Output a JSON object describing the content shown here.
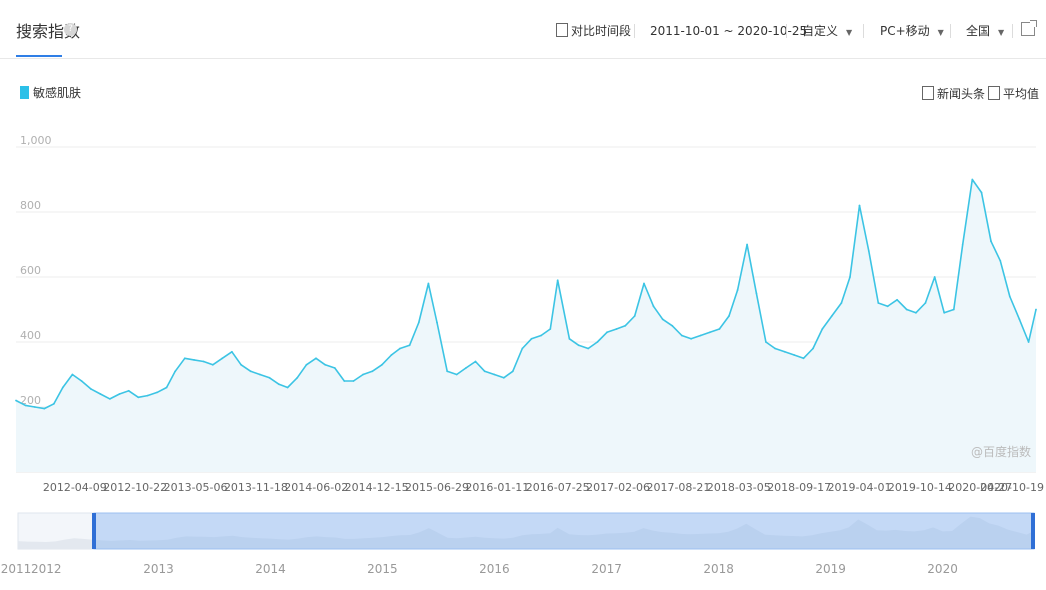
{
  "header": {
    "title": "搜索指数",
    "help_icon": "question-icon",
    "compare_label": "对比时间段",
    "date_range": "2011-10-01 ~ 2020-10-25",
    "custom_label": "自定义",
    "device_label": "PC+移动",
    "region_label": "全国",
    "share_icon": "share-icon"
  },
  "options": {
    "news_label": "新闻头条",
    "avg_label": "平均值"
  },
  "watermark": "@百度指数",
  "colors": {
    "line": "#3cc4e4",
    "accent": "#2f7ee6",
    "fill": "#eef7fb"
  },
  "chart_data": {
    "type": "area",
    "series": [
      {
        "name": "敏感肌肤",
        "x": [
          "2011-10-01",
          "2011-11-01",
          "2011-12-01",
          "2012-01-01",
          "2012-02-01",
          "2012-03-01",
          "2012-04-01",
          "2012-05-01",
          "2012-06-01",
          "2012-07-01",
          "2012-08-01",
          "2012-09-01",
          "2012-10-01",
          "2012-11-01",
          "2012-12-01",
          "2013-01-01",
          "2013-02-01",
          "2013-03-01",
          "2013-04-01",
          "2013-05-01",
          "2013-06-01",
          "2013-07-01",
          "2013-08-01",
          "2013-09-01",
          "2013-10-01",
          "2013-11-01",
          "2013-12-01",
          "2014-01-01",
          "2014-02-01",
          "2014-03-01",
          "2014-04-01",
          "2014-05-01",
          "2014-06-01",
          "2014-07-01",
          "2014-08-01",
          "2014-09-01",
          "2014-10-01",
          "2014-11-01",
          "2014-12-01",
          "2015-01-01",
          "2015-02-01",
          "2015-03-01",
          "2015-04-01",
          "2015-05-01",
          "2015-06-01",
          "2015-06-29",
          "2015-08-01",
          "2015-09-01",
          "2015-10-01",
          "2015-11-01",
          "2015-12-01",
          "2016-01-01",
          "2016-02-01",
          "2016-03-01",
          "2016-04-01",
          "2016-05-01",
          "2016-06-01",
          "2016-07-01",
          "2016-07-25",
          "2016-09-01",
          "2016-10-01",
          "2016-11-01",
          "2016-12-01",
          "2017-01-01",
          "2017-02-01",
          "2017-03-01",
          "2017-04-01",
          "2017-05-01",
          "2017-06-01",
          "2017-07-01",
          "2017-08-01",
          "2017-09-01",
          "2017-10-01",
          "2017-11-01",
          "2017-12-01",
          "2018-01-01",
          "2018-02-01",
          "2018-03-01",
          "2018-04-01",
          "2018-05-01",
          "2018-06-01",
          "2018-07-01",
          "2018-08-01",
          "2018-09-01",
          "2018-10-01",
          "2018-11-01",
          "2018-12-01",
          "2019-01-01",
          "2019-02-01",
          "2019-03-01",
          "2019-04-01",
          "2019-05-01",
          "2019-06-01",
          "2019-07-01",
          "2019-08-01",
          "2019-09-01",
          "2019-10-01",
          "2019-11-01",
          "2019-12-01",
          "2020-01-01",
          "2020-02-01",
          "2020-03-01",
          "2020-04-01",
          "2020-05-01",
          "2020-06-01",
          "2020-07-01",
          "2020-08-01",
          "2020-09-01",
          "2020-10-01",
          "2020-10-25"
        ],
        "values": [
          220,
          205,
          200,
          195,
          210,
          260,
          300,
          280,
          255,
          240,
          225,
          240,
          250,
          230,
          235,
          245,
          260,
          310,
          350,
          345,
          340,
          330,
          350,
          370,
          330,
          310,
          300,
          290,
          270,
          260,
          290,
          330,
          350,
          330,
          320,
          280,
          280,
          300,
          310,
          330,
          360,
          380,
          390,
          460,
          580,
          460,
          310,
          300,
          320,
          340,
          310,
          300,
          290,
          310,
          380,
          410,
          420,
          440,
          590,
          410,
          390,
          380,
          400,
          430,
          440,
          450,
          480,
          580,
          510,
          470,
          450,
          420,
          410,
          420,
          430,
          440,
          480,
          560,
          700,
          550,
          400,
          380,
          370,
          360,
          350,
          380,
          440,
          480,
          520,
          600,
          820,
          680,
          520,
          510,
          530,
          500,
          490,
          520,
          600,
          490,
          500,
          700,
          900,
          860,
          710,
          650,
          540,
          470,
          400,
          500
        ]
      }
    ],
    "yticks": [
      "1,000",
      "800",
      "600",
      "400",
      "200"
    ],
    "ylim": [
      0,
      1000
    ],
    "xlim": [
      "2011-10-01",
      "2020-10-25"
    ],
    "xtick_labels": [
      "2012-04-09",
      "2012-10-22",
      "2013-05-06",
      "2013-11-18",
      "2014-06-02",
      "2014-12-15",
      "2015-06-29",
      "2016-01-11",
      "2016-07-25",
      "2017-02-06",
      "2017-08-21",
      "2018-03-05",
      "2018-09-17",
      "2019-04-01",
      "2019-10-14",
      "2020-04-27",
      "2020-10-19"
    ],
    "navigator_years": [
      "2011",
      "2012",
      "2013",
      "2014",
      "2015",
      "2016",
      "2017",
      "2018",
      "2019",
      "2020"
    ],
    "grid": true,
    "legend": "top-left"
  }
}
